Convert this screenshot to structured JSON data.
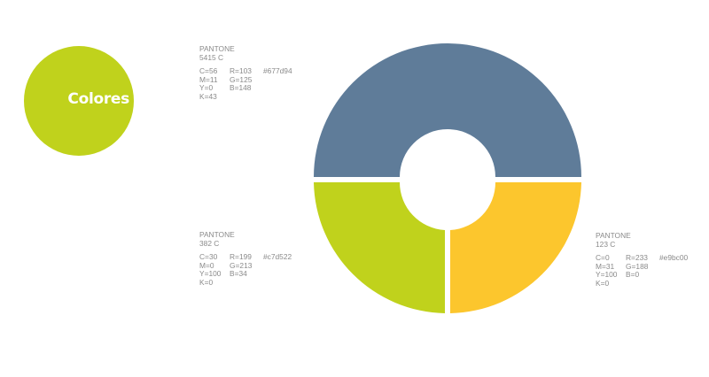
{
  "badge": {
    "label": "Colores",
    "color": "#c0d21c"
  },
  "swatches": {
    "blue": {
      "name": "PANTONE",
      "code": "5415 C",
      "color": "#5f7c99",
      "c": "C=56",
      "m": "M=11",
      "y": "Y=0",
      "k": "K=43",
      "r": "R=103",
      "g": "G=125",
      "b": "B=148",
      "hex": "#677d94"
    },
    "green": {
      "name": "PANTONE",
      "code": "382 C",
      "color": "#c0d21c",
      "c": "C=30",
      "m": "M=0",
      "y": "Y=100",
      "k": "K=0",
      "r": "R=199",
      "g": "G=213",
      "b": "B=34",
      "hex": "#c7d522"
    },
    "yellow": {
      "name": "PANTONE",
      "code": "123 C",
      "color": "#fcc62d",
      "c": "C=0",
      "m": "M=31",
      "y": "Y=100",
      "k": "K=0",
      "r": "R=233",
      "g": "G=188",
      "b": "B=0",
      "hex": "#e9bc00"
    }
  }
}
